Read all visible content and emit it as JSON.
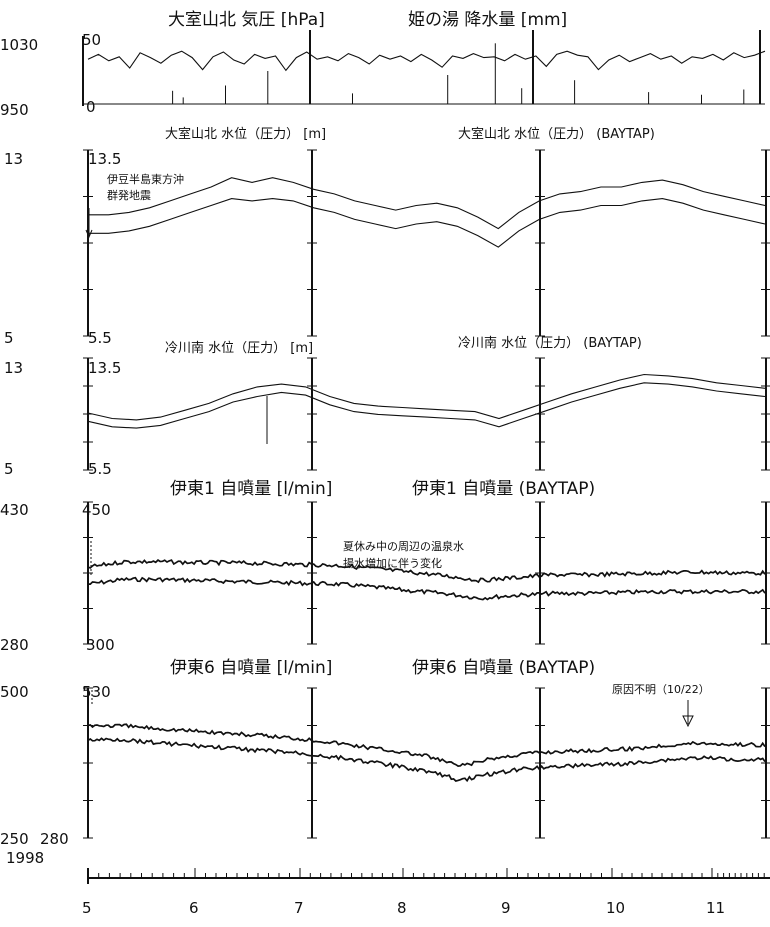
{
  "chart_data": [
    {
      "id": "panel1",
      "type": "line",
      "titles": [
        "大室山北 気圧 [hPa]",
        "姫の湯 降水量 [mm]"
      ],
      "ylim_left": [
        950,
        1030
      ],
      "ylim_right": [
        0,
        50
      ],
      "left_ticks": [
        "1030",
        "950"
      ],
      "right_ticks": [
        "50",
        "0"
      ],
      "series": [
        {
          "values": [
            1006,
            1012,
            1004,
            1009,
            995,
            1014,
            1008,
            1001,
            1011,
            1016,
            1008,
            993,
            1009,
            1015,
            1005,
            1000,
            1012,
            1007,
            1010,
            992,
            1008,
            1015,
            1006,
            1009,
            1004,
            1013,
            1008,
            1000,
            1011,
            1006,
            1010,
            1003,
            1012,
            1005,
            996,
            1010,
            1007,
            1013,
            1008,
            1009,
            1004,
            1012,
            1006,
            1010,
            997,
            1012,
            1016,
            1011,
            1009,
            993,
            1005,
            1011,
            1003,
            1008,
            1013,
            1006,
            1010,
            1001,
            1009,
            1007,
            1012,
            1005,
            1014,
            1008,
            1011,
            1016
          ]
        },
        {
          "values": [
            {
              "x": 5.8,
              "v": 10
            },
            {
              "x": 5.9,
              "v": 5
            },
            {
              "x": 6.3,
              "v": 14
            },
            {
              "x": 6.7,
              "v": 25
            },
            {
              "x": 7.5,
              "v": 8
            },
            {
              "x": 8.4,
              "v": 22
            },
            {
              "x": 8.85,
              "v": 46
            },
            {
              "x": 9.1,
              "v": 12
            },
            {
              "x": 9.6,
              "v": 18
            },
            {
              "x": 10.3,
              "v": 9
            },
            {
              "x": 10.8,
              "v": 7
            },
            {
              "x": 11.2,
              "v": 11
            }
          ]
        }
      ]
    },
    {
      "id": "panel2",
      "type": "line",
      "titles": [
        "大室山北 水位（圧力） [m]",
        "大室山北 水位（圧力） (BAYTAP)"
      ],
      "ylim_left": [
        5,
        13
      ],
      "ylim_right": [
        5.5,
        13.5
      ],
      "left_ticks": [
        "13",
        "5"
      ],
      "right_ticks": [
        "13.5",
        "5.5"
      ],
      "annotations": [
        "伊豆半島東方沖",
        "群発地震"
      ],
      "series": [
        {
          "values": [
            9.4,
            9.4,
            9.5,
            9.7,
            10.0,
            10.3,
            10.6,
            10.9,
            10.8,
            10.9,
            10.8,
            10.5,
            10.3,
            10.0,
            9.8,
            9.6,
            9.8,
            9.9,
            9.7,
            9.3,
            8.8,
            9.5,
            10.0,
            10.3,
            10.4,
            10.6,
            10.6,
            10.8,
            10.9,
            10.7,
            10.4,
            10.2,
            10.0,
            9.8
          ]
        },
        {
          "values": [
            10.2,
            10.2,
            10.3,
            10.5,
            10.8,
            11.1,
            11.4,
            11.8,
            11.6,
            11.8,
            11.6,
            11.3,
            11.1,
            10.8,
            10.6,
            10.4,
            10.6,
            10.7,
            10.5,
            10.1,
            9.6,
            10.3,
            10.8,
            11.1,
            11.2,
            11.4,
            11.4,
            11.6,
            11.7,
            11.5,
            11.2,
            11.0,
            10.8,
            10.6
          ]
        }
      ]
    },
    {
      "id": "panel3",
      "type": "line",
      "titles": [
        "冷川南 水位（圧力） [m]",
        "冷川南 水位（圧力） (BAYTAP)"
      ],
      "ylim_left": [
        5,
        13
      ],
      "ylim_right": [
        5.5,
        13.5
      ],
      "left_ticks": [
        "13",
        "5"
      ],
      "right_ticks": [
        "13.5",
        "5.5"
      ],
      "series": [
        {
          "values": [
            8.4,
            8.0,
            7.9,
            8.1,
            8.6,
            9.1,
            9.8,
            10.2,
            10.5,
            10.3,
            9.6,
            9.1,
            8.9,
            8.8,
            8.7,
            8.6,
            8.5,
            8.0,
            8.6,
            9.2,
            9.8,
            10.3,
            10.8,
            11.2,
            11.1,
            10.9,
            10.6,
            10.4,
            10.2
          ]
        },
        {
          "values": [
            9.0,
            8.6,
            8.5,
            8.7,
            9.2,
            9.7,
            10.4,
            10.9,
            11.1,
            10.9,
            10.2,
            9.7,
            9.5,
            9.4,
            9.3,
            9.2,
            9.1,
            8.6,
            9.2,
            9.8,
            10.4,
            10.9,
            11.4,
            11.8,
            11.7,
            11.5,
            11.2,
            11.0,
            10.8
          ]
        }
      ]
    },
    {
      "id": "panel4",
      "type": "line",
      "titles": [
        "伊東1 自噴量 [l/min]",
        "伊東1 自噴量 (BAYTAP)"
      ],
      "ylim_left": [
        280,
        430
      ],
      "ylim_right": [
        300,
        450
      ],
      "left_ticks": [
        "430",
        "280"
      ],
      "right_ticks": [
        "450",
        "300"
      ],
      "annotations": [
        "夏休み中の周辺の温泉水",
        "揚水増加に伴う変化"
      ],
      "series": [
        {
          "values": [
            360,
            366,
            366,
            365,
            365,
            364,
            363,
            362,
            359,
            355,
            351,
            346,
            349,
            352,
            352,
            353,
            354,
            355,
            354,
            354
          ]
        },
        {
          "values": [
            342,
            347,
            347,
            346,
            345,
            344,
            343,
            342,
            339,
            335,
            332,
            327,
            330,
            332,
            332,
            333,
            334,
            334,
            334,
            334
          ]
        }
      ]
    },
    {
      "id": "panel5",
      "type": "line",
      "titles": [
        "伊東6 自噴量 [l/min]",
        "伊東6 自噴量 (BAYTAP)"
      ],
      "ylim_left": [
        250,
        500
      ],
      "ylim_right": [
        280,
        530
      ],
      "left_ticks": [
        "500",
        "250"
      ],
      "right_ticks": [
        "530",
        "280"
      ],
      "annotations": [
        "原因不明（10/22）"
      ],
      "series": [
        {
          "values": [
            437,
            436,
            432,
            428,
            424,
            420,
            416,
            410,
            402,
            394,
            385,
            368,
            381,
            390,
            393,
            395,
            397,
            403,
            407,
            405,
            404
          ]
        },
        {
          "values": [
            412,
            413,
            408,
            403,
            399,
            395,
            391,
            385,
            378,
            369,
            360,
            344,
            356,
            365,
            368,
            370,
            372,
            378,
            382,
            380,
            379
          ]
        }
      ]
    }
  ],
  "time_axis": {
    "year_label": "1998",
    "tick_labels": [
      "5",
      "6",
      "7",
      "8",
      "9",
      "10",
      "11"
    ]
  }
}
